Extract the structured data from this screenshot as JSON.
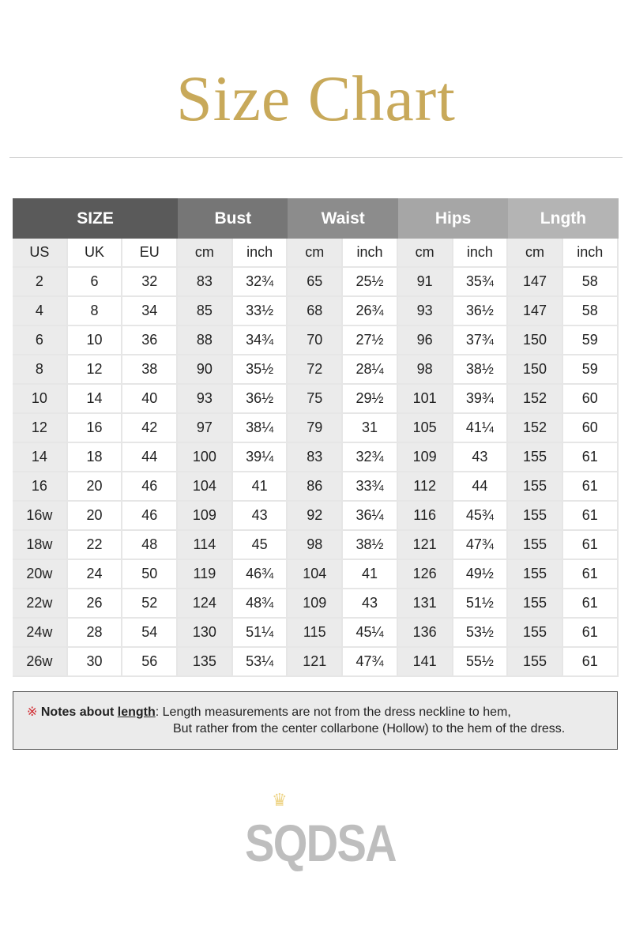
{
  "title": "Size Chart",
  "colors": {
    "title": "#c8a95a",
    "note_mark": "#d0282e"
  },
  "table": {
    "groups": [
      {
        "label": "SIZE",
        "span": 3,
        "color": "#5a5a5a"
      },
      {
        "label": "Bust",
        "span": 2,
        "color": "#767676"
      },
      {
        "label": "Waist",
        "span": 2,
        "color": "#8c8c8c"
      },
      {
        "label": "Hips",
        "span": 2,
        "color": "#a6a6a6"
      },
      {
        "label": "Lngth",
        "span": 2,
        "color": "#b4b4b4"
      }
    ],
    "subheaders": [
      "US",
      "UK",
      "EU",
      "cm",
      "inch",
      "cm",
      "inch",
      "cm",
      "inch",
      "cm",
      "inch"
    ],
    "rows": [
      [
        "2",
        "6",
        "32",
        "83",
        "32¾",
        "65",
        "25½",
        "91",
        "35¾",
        "147",
        "58"
      ],
      [
        "4",
        "8",
        "34",
        "85",
        "33½",
        "68",
        "26¾",
        "93",
        "36½",
        "147",
        "58"
      ],
      [
        "6",
        "10",
        "36",
        "88",
        "34¾",
        "70",
        "27½",
        "96",
        "37¾",
        "150",
        "59"
      ],
      [
        "8",
        "12",
        "38",
        "90",
        "35½",
        "72",
        "28¼",
        "98",
        "38½",
        "150",
        "59"
      ],
      [
        "10",
        "14",
        "40",
        "93",
        "36½",
        "75",
        "29½",
        "101",
        "39¾",
        "152",
        "60"
      ],
      [
        "12",
        "16",
        "42",
        "97",
        "38¼",
        "79",
        "31",
        "105",
        "41¼",
        "152",
        "60"
      ],
      [
        "14",
        "18",
        "44",
        "100",
        "39¼",
        "83",
        "32¾",
        "109",
        "43",
        "155",
        "61"
      ],
      [
        "16",
        "20",
        "46",
        "104",
        "41",
        "86",
        "33¾",
        "112",
        "44",
        "155",
        "61"
      ],
      [
        "16w",
        "20",
        "46",
        "109",
        "43",
        "92",
        "36¼",
        "116",
        "45¾",
        "155",
        "61"
      ],
      [
        "18w",
        "22",
        "48",
        "114",
        "45",
        "98",
        "38½",
        "121",
        "47¾",
        "155",
        "61"
      ],
      [
        "20w",
        "24",
        "50",
        "119",
        "46¾",
        "104",
        "41",
        "126",
        "49½",
        "155",
        "61"
      ],
      [
        "22w",
        "26",
        "52",
        "124",
        "48¾",
        "109",
        "43",
        "131",
        "51½",
        "155",
        "61"
      ],
      [
        "24w",
        "28",
        "54",
        "130",
        "51¼",
        "115",
        "45¼",
        "136",
        "53½",
        "155",
        "61"
      ],
      [
        "26w",
        "30",
        "56",
        "135",
        "53¼",
        "121",
        "47¾",
        "141",
        "55½",
        "155",
        "61"
      ]
    ]
  },
  "note": {
    "mark": "※",
    "heading_prefix": "Notes about ",
    "heading_keyword": "length",
    "line1": ": Length measurements are not from the dress neckline to hem,",
    "line2": "But rather from the center collarbone (Hollow) to the hem of the dress."
  },
  "watermark": {
    "text": "SQDSA",
    "icon": "crown-icon"
  }
}
